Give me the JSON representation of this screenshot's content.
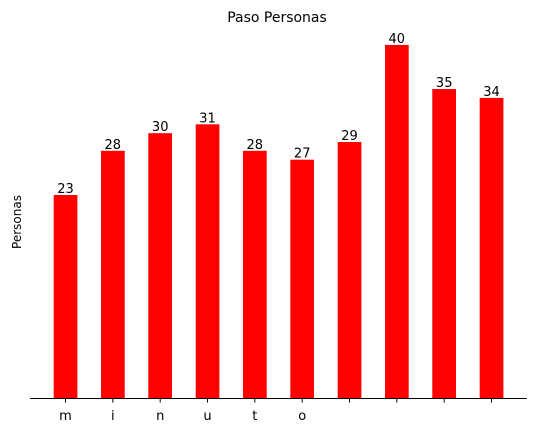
{
  "chart_data": {
    "type": "bar",
    "title": "Paso Personas",
    "xlabel": "",
    "ylabel": "Personas",
    "categories": [
      "m",
      "i",
      "n",
      "u",
      "t",
      "o",
      "",
      "",
      "",
      ""
    ],
    "values": [
      23,
      28,
      30,
      31,
      28,
      27,
      29,
      40,
      35,
      34
    ],
    "ylim": [
      0,
      41.8
    ],
    "bar_color": "#ff0000",
    "data_labels": true,
    "yticks_visible": false,
    "grid": false,
    "legend": "none"
  }
}
